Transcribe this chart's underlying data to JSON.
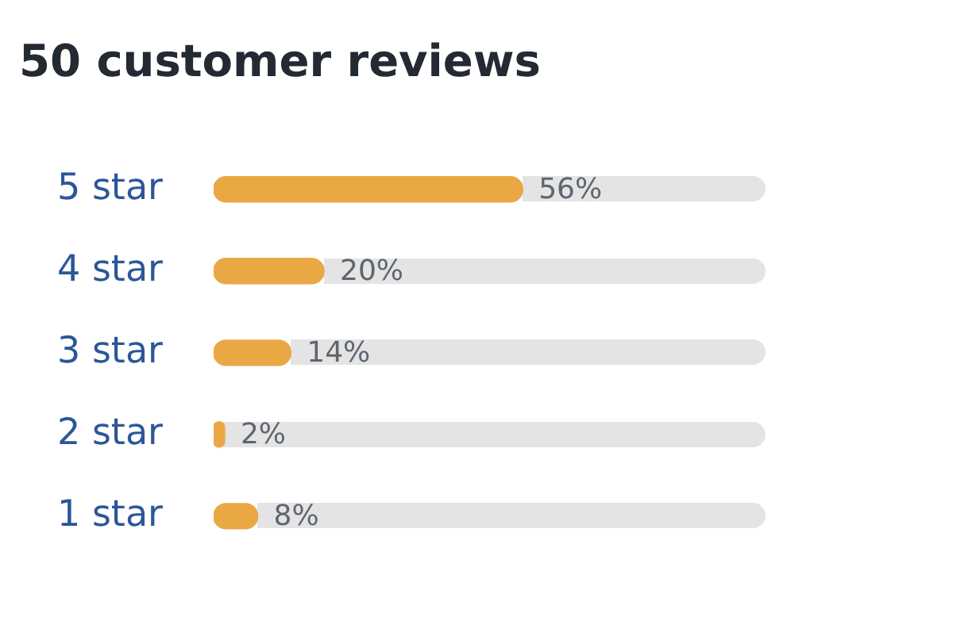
{
  "chart_data": {
    "type": "bar",
    "orientation": "horizontal",
    "title": "50 customer reviews",
    "categories": [
      "5 star",
      "4 star",
      "3 star",
      "2 star",
      "1 star"
    ],
    "values": [
      56,
      20,
      14,
      2,
      8
    ],
    "value_labels": [
      "56%",
      "20%",
      "14%",
      "2%",
      "8%"
    ],
    "color": "#eaa845",
    "xlim": [
      0,
      100
    ],
    "tick_labels": "y",
    "grid": false,
    "legend": false
  }
}
